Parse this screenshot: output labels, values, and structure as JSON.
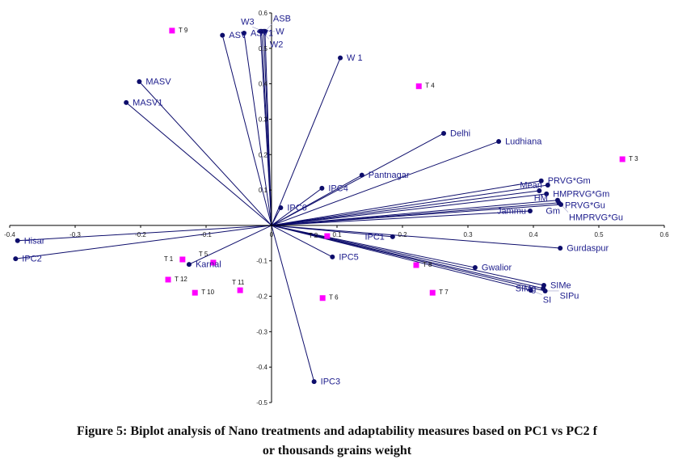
{
  "chart_data": {
    "type": "scatter",
    "subtype": "biplot",
    "title": "Figure 5: Biplot analysis of Nano treatments and adaptability measures based on PC1 vs PC2 f",
    "title_line2": "or thousands grains weight",
    "xlabel": "",
    "ylabel": "",
    "xlim": [
      -0.4,
      0.6
    ],
    "ylim": [
      -0.5,
      0.6
    ],
    "x_ticks": [
      "-0.4",
      "-0.3",
      "-0.2",
      "-0.1",
      "0",
      "0.1",
      "0.2",
      "0.3",
      "0.4",
      "0.5",
      "0.6"
    ],
    "y_ticks": [
      "0.6",
      "0.5",
      "0.4",
      "0.3",
      "0.2",
      "0.1",
      "0",
      "-0.1",
      "-0.2",
      "-0.3",
      "-0.4",
      "-0.5"
    ],
    "grid": false,
    "colors": {
      "vectors": "#0d0d6b",
      "vector_label": "#1c1c8c",
      "treatments": "#ff00ff"
    },
    "vectors": [
      {
        "name": "ASV",
        "x": -0.075,
        "y": 0.537
      },
      {
        "name": "ASV1",
        "x": -0.042,
        "y": 0.543
      },
      {
        "name": "W",
        "x": -0.017,
        "y": 0.548
      },
      {
        "name": "W2",
        "x": -0.015,
        "y": 0.548
      },
      {
        "name": "W3",
        "x": -0.012,
        "y": 0.548
      },
      {
        "name": "ASB",
        "x": -0.01,
        "y": 0.548
      },
      {
        "name": "W 1",
        "x": 0.105,
        "y": 0.473
      },
      {
        "name": "MASV",
        "x": -0.202,
        "y": 0.406
      },
      {
        "name": "MASV1",
        "x": -0.222,
        "y": 0.347
      },
      {
        "name": "Delhi",
        "x": 0.263,
        "y": 0.26
      },
      {
        "name": "Ludhiana",
        "x": 0.347,
        "y": 0.237
      },
      {
        "name": "Pantnagar",
        "x": 0.138,
        "y": 0.142
      },
      {
        "name": "IPC4",
        "x": 0.077,
        "y": 0.105
      },
      {
        "name": "IPC6",
        "x": 0.014,
        "y": 0.05
      },
      {
        "name": "PRVG*Gm",
        "x": 0.412,
        "y": 0.126
      },
      {
        "name": "Mean",
        "x": 0.422,
        "y": 0.114
      },
      {
        "name": "HM",
        "x": 0.409,
        "y": 0.098
      },
      {
        "name": "HMPRVG*Gm",
        "x": 0.42,
        "y": 0.089
      },
      {
        "name": "PRVG*Gu",
        "x": 0.437,
        "y": 0.071
      },
      {
        "name": "Gm",
        "x": 0.439,
        "y": 0.064
      },
      {
        "name": "HMPRVG*Gu",
        "x": 0.442,
        "y": 0.059
      },
      {
        "name": "Jammu",
        "x": 0.395,
        "y": 0.041
      },
      {
        "name": "Hisar",
        "x": -0.388,
        "y": -0.043
      },
      {
        "name": "IPC2",
        "x": -0.391,
        "y": -0.094
      },
      {
        "name": "Karnal",
        "x": -0.126,
        "y": -0.11
      },
      {
        "name": "IPC1",
        "x": 0.185,
        "y": -0.032
      },
      {
        "name": "IPC5",
        "x": 0.093,
        "y": -0.089
      },
      {
        "name": "Gurdaspur",
        "x": 0.441,
        "y": -0.064
      },
      {
        "name": "Gwalior",
        "x": 0.311,
        "y": -0.119
      },
      {
        "name": "SIMe",
        "x": 0.416,
        "y": -0.169
      },
      {
        "name": "SIMg",
        "x": 0.415,
        "y": -0.178
      },
      {
        "name": "SI",
        "x": 0.396,
        "y": -0.183
      },
      {
        "name": "SIPu",
        "x": 0.418,
        "y": -0.185
      },
      {
        "name": "IPC3",
        "x": 0.065,
        "y": -0.441
      }
    ],
    "treatments": [
      {
        "name": "T 9",
        "x": -0.152,
        "y": 0.55
      },
      {
        "name": "T 4",
        "x": 0.225,
        "y": 0.393
      },
      {
        "name": "T 3",
        "x": 0.536,
        "y": 0.187
      },
      {
        "name": "T 2",
        "x": 0.085,
        "y": -0.03
      },
      {
        "name": "T 1",
        "x": -0.136,
        "y": -0.096
      },
      {
        "name": "T 5",
        "x": -0.089,
        "y": -0.105
      },
      {
        "name": "T 12",
        "x": -0.158,
        "y": -0.153
      },
      {
        "name": "T 10",
        "x": -0.117,
        "y": -0.19
      },
      {
        "name": "T 11",
        "x": -0.048,
        "y": -0.183
      },
      {
        "name": "T 6",
        "x": 0.078,
        "y": -0.205
      },
      {
        "name": "T 8",
        "x": 0.221,
        "y": -0.112
      },
      {
        "name": "T 7",
        "x": 0.246,
        "y": -0.19
      }
    ]
  }
}
